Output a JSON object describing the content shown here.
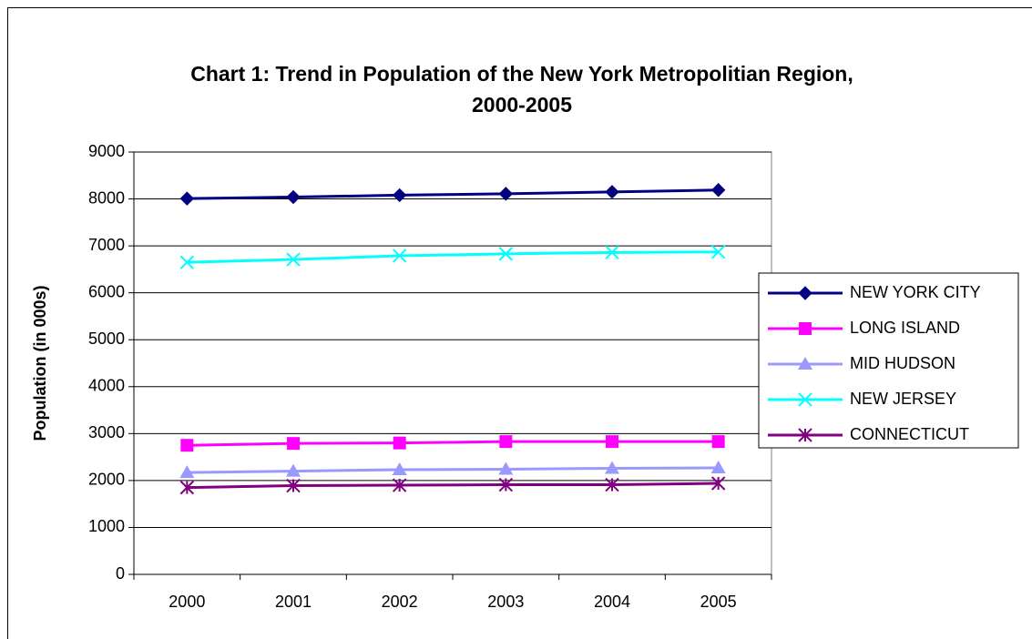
{
  "chart_data": {
    "type": "line",
    "title": "Chart 1: Trend in Population of the New York Metropolitian Region, 2000-2005",
    "y_label": "Population (in 000s)",
    "categories": [
      "2000",
      "2001",
      "2002",
      "2003",
      "2004",
      "2005"
    ],
    "series": [
      {
        "name": "NEW YORK CITY",
        "color": "#000080",
        "marker": "diamond",
        "values": [
          8008,
          8040,
          8080,
          8110,
          8150,
          8190
        ]
      },
      {
        "name": "LONG ISLAND",
        "color": "#ff00ff",
        "marker": "square",
        "values": [
          2750,
          2790,
          2800,
          2830,
          2830,
          2830
        ]
      },
      {
        "name": "MID HUDSON",
        "color": "#9999ff",
        "marker": "triangle",
        "values": [
          2170,
          2200,
          2230,
          2240,
          2260,
          2270
        ]
      },
      {
        "name": "NEW JERSEY",
        "color": "#00ffff",
        "marker": "x",
        "values": [
          6650,
          6710,
          6790,
          6830,
          6860,
          6870
        ]
      },
      {
        "name": "CONNECTICUT",
        "color": "#800080",
        "marker": "star",
        "values": [
          1850,
          1890,
          1900,
          1910,
          1910,
          1940
        ]
      }
    ],
    "ylim": [
      0,
      9000
    ],
    "yticks": [
      0,
      1000,
      2000,
      3000,
      4000,
      5000,
      6000,
      7000,
      8000,
      9000
    ],
    "grid": true,
    "legend": "right"
  }
}
